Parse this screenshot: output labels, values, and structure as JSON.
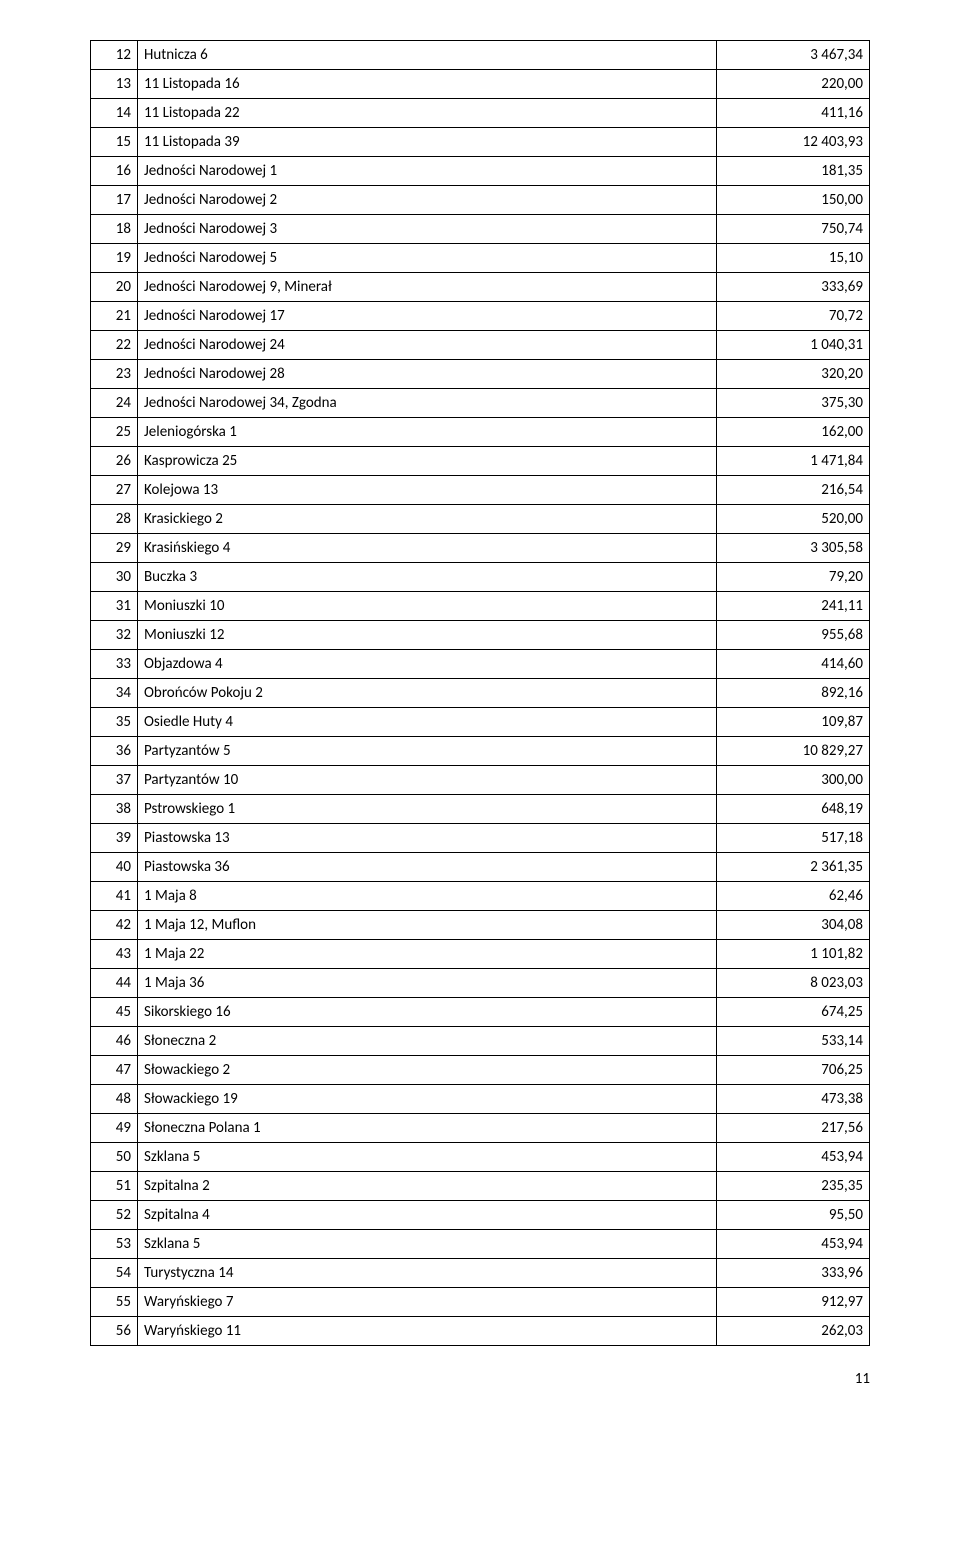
{
  "table": {
    "rows": [
      {
        "n": "12",
        "name": "Hutnicza 6",
        "val": "3 467,34"
      },
      {
        "n": "13",
        "name": "11 Listopada 16",
        "val": "220,00"
      },
      {
        "n": "14",
        "name": "11 Listopada 22",
        "val": "411,16"
      },
      {
        "n": "15",
        "name": "11 Listopada 39",
        "val": "12 403,93"
      },
      {
        "n": "16",
        "name": "Jedności Narodowej 1",
        "val": "181,35"
      },
      {
        "n": "17",
        "name": "Jedności Narodowej 2",
        "val": "150,00"
      },
      {
        "n": "18",
        "name": "Jedności Narodowej 3",
        "val": "750,74"
      },
      {
        "n": "19",
        "name": "Jedności Narodowej 5",
        "val": "15,10"
      },
      {
        "n": "20",
        "name": "Jedności Narodowej 9, Minerał",
        "val": "333,69"
      },
      {
        "n": "21",
        "name": "Jedności Narodowej 17",
        "val": "70,72"
      },
      {
        "n": "22",
        "name": "Jedności Narodowej 24",
        "val": "1 040,31"
      },
      {
        "n": "23",
        "name": "Jedności Narodowej 28",
        "val": "320,20"
      },
      {
        "n": "24",
        "name": "Jedności Narodowej 34, Zgodna",
        "val": "375,30"
      },
      {
        "n": "25",
        "name": "Jeleniogórska 1",
        "val": "162,00"
      },
      {
        "n": "26",
        "name": "Kasprowicza 25",
        "val": "1 471,84"
      },
      {
        "n": "27",
        "name": "Kolejowa 13",
        "val": "216,54"
      },
      {
        "n": "28",
        "name": "Krasickiego 2",
        "val": "520,00"
      },
      {
        "n": "29",
        "name": "Krasińskiego 4",
        "val": "3 305,58"
      },
      {
        "n": "30",
        "name": "Buczka 3",
        "val": "79,20"
      },
      {
        "n": "31",
        "name": "Moniuszki 10",
        "val": "241,11"
      },
      {
        "n": "32",
        "name": "Moniuszki 12",
        "val": "955,68"
      },
      {
        "n": "33",
        "name": "Objazdowa 4",
        "val": "414,60"
      },
      {
        "n": "34",
        "name": "Obrońców Pokoju 2",
        "val": "892,16"
      },
      {
        "n": "35",
        "name": "Osiedle Huty 4",
        "val": "109,87"
      },
      {
        "n": "36",
        "name": "Partyzantów 5",
        "val": "10 829,27"
      },
      {
        "n": "37",
        "name": "Partyzantów 10",
        "val": "300,00"
      },
      {
        "n": "38",
        "name": "Pstrowskiego 1",
        "val": "648,19"
      },
      {
        "n": "39",
        "name": "Piastowska 13",
        "val": "517,18"
      },
      {
        "n": "40",
        "name": "Piastowska 36",
        "val": "2 361,35"
      },
      {
        "n": "41",
        "name": "1 Maja 8",
        "val": "62,46"
      },
      {
        "n": "42",
        "name": "1 Maja 12, Muflon",
        "val": "304,08"
      },
      {
        "n": "43",
        "name": "1 Maja 22",
        "val": "1 101,82"
      },
      {
        "n": "44",
        "name": "1 Maja 36",
        "val": "8 023,03"
      },
      {
        "n": "45",
        "name": "Sikorskiego 16",
        "val": "674,25"
      },
      {
        "n": "46",
        "name": "Słoneczna 2",
        "val": "533,14"
      },
      {
        "n": "47",
        "name": "Słowackiego 2",
        "val": "706,25"
      },
      {
        "n": "48",
        "name": "Słowackiego 19",
        "val": "473,38"
      },
      {
        "n": "49",
        "name": "Słoneczna Polana 1",
        "val": "217,56"
      },
      {
        "n": "50",
        "name": "Szklana 5",
        "val": "453,94"
      },
      {
        "n": "51",
        "name": "Szpitalna 2",
        "val": "235,35"
      },
      {
        "n": "52",
        "name": "Szpitalna 4",
        "val": "95,50"
      },
      {
        "n": "53",
        "name": "Szklana 5",
        "val": "453,94"
      },
      {
        "n": "54",
        "name": "Turystyczna 14",
        "val": "333,96"
      },
      {
        "n": "55",
        "name": "Waryńskiego 7",
        "val": "912,97"
      },
      {
        "n": "56",
        "name": "Waryńskiego 11",
        "val": "262,03"
      }
    ]
  },
  "page_number": "11"
}
